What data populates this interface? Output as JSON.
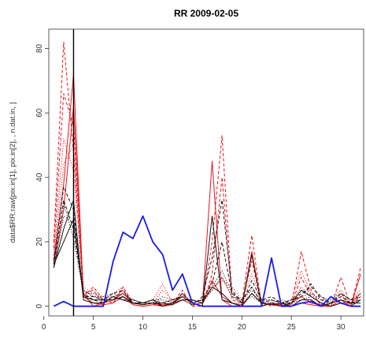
{
  "chart_data": {
    "type": "line",
    "title": "RR 2009-02-05",
    "xlabel": "",
    "ylabel": "data$RR.raw[pix.in[1], pix.in[2], , n.dat.in, ]",
    "xlim": [
      0.5,
      32.3
    ],
    "ylim": [
      -3,
      86
    ],
    "xticks": [
      0,
      5,
      10,
      15,
      20,
      25,
      30
    ],
    "yticks": [
      0,
      20,
      40,
      60,
      80
    ],
    "grid": false,
    "legend": "none",
    "x": [
      1,
      2,
      3,
      4,
      5,
      6,
      7,
      8,
      9,
      10,
      11,
      12,
      13,
      14,
      15,
      16,
      17,
      18,
      19,
      20,
      21,
      22,
      23,
      24,
      25,
      26,
      27,
      28,
      29,
      30,
      31,
      32
    ],
    "vline": 3,
    "series": [
      {
        "color": "#e8141c",
        "dash": "solid",
        "width": 1.0,
        "values": [
          14,
          38,
          72,
          3,
          1,
          0.5,
          1,
          3,
          0.5,
          0,
          0.5,
          0,
          0.5,
          4,
          1,
          0,
          45,
          2,
          0,
          0,
          17,
          0,
          1,
          0.5,
          0,
          1,
          0.5,
          0,
          0,
          2,
          0,
          10
        ]
      },
      {
        "color": "#e8141c",
        "dash": "solid",
        "width": 1.0,
        "values": [
          12,
          30,
          62,
          4,
          0,
          1,
          2,
          4,
          1,
          0.5,
          1,
          0.5,
          1,
          2,
          0.5,
          1,
          8,
          3,
          1,
          0.5,
          4,
          1,
          0.5,
          0,
          1,
          3,
          1,
          0.5,
          0,
          1,
          1,
          4
        ]
      },
      {
        "color": "#e8141c",
        "dash": "dashed",
        "width": 1.0,
        "values": [
          20,
          82,
          48,
          3,
          6,
          2,
          1,
          6,
          1,
          0.5,
          1,
          0,
          1,
          5,
          0,
          0,
          20,
          53,
          3,
          1,
          22,
          0,
          1,
          0,
          0,
          17,
          5,
          0,
          0,
          9,
          0,
          12
        ]
      },
      {
        "color": "#e8141c",
        "dash": "dashed",
        "width": 1.0,
        "values": [
          18,
          66,
          56,
          4,
          5,
          1,
          2,
          5,
          0.5,
          0,
          0.5,
          1,
          2,
          3,
          1,
          0,
          10,
          40,
          2,
          1,
          14,
          1,
          0,
          1,
          0.5,
          9,
          3,
          1,
          0.5,
          4,
          0.5,
          3
        ]
      },
      {
        "color": "#e8141c",
        "dash": "dotted",
        "width": 1.0,
        "values": [
          16,
          52,
          42,
          5,
          3,
          2,
          4,
          6,
          1,
          1,
          2,
          7,
          1,
          4,
          1,
          2,
          6,
          8,
          6,
          2,
          10,
          2,
          1,
          0.5,
          2,
          11,
          4,
          2,
          1,
          3,
          2,
          5
        ]
      },
      {
        "color": "#e8141c",
        "dash": "dotted",
        "width": 1.0,
        "values": [
          15,
          44,
          50,
          6,
          4,
          3,
          3,
          4,
          2,
          1,
          1,
          5,
          2,
          2,
          2,
          1,
          5,
          9,
          3,
          1,
          6,
          1,
          2,
          1,
          1,
          6,
          3,
          3,
          2,
          5,
          1,
          3
        ]
      },
      {
        "color": "#111111",
        "dash": "solid",
        "width": 1.0,
        "values": [
          12,
          24,
          33,
          2,
          1,
          1,
          3,
          2,
          1,
          1,
          2,
          0,
          1,
          3,
          1,
          0,
          28,
          2,
          1,
          0,
          16,
          0,
          1,
          0,
          1,
          5,
          3,
          1,
          0,
          1,
          0,
          2
        ]
      },
      {
        "color": "#111111",
        "dash": "solid",
        "width": 1.0,
        "values": [
          13,
          20,
          27,
          3,
          2,
          2,
          2,
          3,
          1,
          0.5,
          1,
          1,
          0.5,
          2,
          2,
          1,
          6,
          4,
          1,
          0,
          4,
          1,
          0.5,
          1,
          0,
          2,
          2,
          0,
          1,
          2,
          1,
          1
        ]
      },
      {
        "color": "#111111",
        "dash": "dashed",
        "width": 1.0,
        "values": [
          14,
          37,
          30,
          3,
          3,
          2,
          4,
          5,
          1,
          1,
          1,
          0,
          1,
          4,
          0,
          3,
          15,
          33,
          5,
          1,
          8,
          2,
          3,
          1,
          1,
          4,
          6,
          3,
          1,
          4,
          2,
          3
        ]
      },
      {
        "color": "#111111",
        "dash": "dashed",
        "width": 1.0,
        "values": [
          13,
          33,
          24,
          4,
          2,
          1,
          3,
          2,
          2,
          1,
          2,
          1,
          2,
          3,
          1,
          2,
          7,
          20,
          4,
          2,
          6,
          1,
          2,
          1,
          2,
          3,
          7,
          2,
          1,
          3,
          1,
          2
        ]
      },
      {
        "color": "#111111",
        "dash": "dotted",
        "width": 1.0,
        "values": [
          12,
          28,
          26,
          5,
          3,
          3,
          4,
          3,
          2,
          1,
          1,
          3,
          2,
          3,
          1,
          2,
          5,
          9,
          3,
          2,
          5,
          2,
          2,
          1,
          2,
          3,
          4,
          2,
          2,
          4,
          2,
          4
        ]
      },
      {
        "color": "#111111",
        "dash": "dotted",
        "width": 1.0,
        "values": [
          14,
          32,
          21,
          4,
          4,
          2,
          3,
          4,
          2,
          1,
          2,
          2,
          1,
          2,
          2,
          1,
          6,
          11,
          4,
          1,
          3,
          1,
          1,
          2,
          1,
          2,
          3,
          1,
          1,
          2,
          1,
          2
        ]
      },
      {
        "color": "#1a1aee",
        "dash": "solid",
        "width": 1.8,
        "values": [
          0,
          1.5,
          0,
          0,
          0,
          0,
          14,
          23,
          21,
          28,
          20,
          16,
          5,
          10,
          1,
          0,
          0,
          0,
          0,
          0,
          0,
          0,
          15,
          0,
          0,
          1,
          1.5,
          0,
          3,
          1,
          0,
          0
        ]
      }
    ]
  }
}
